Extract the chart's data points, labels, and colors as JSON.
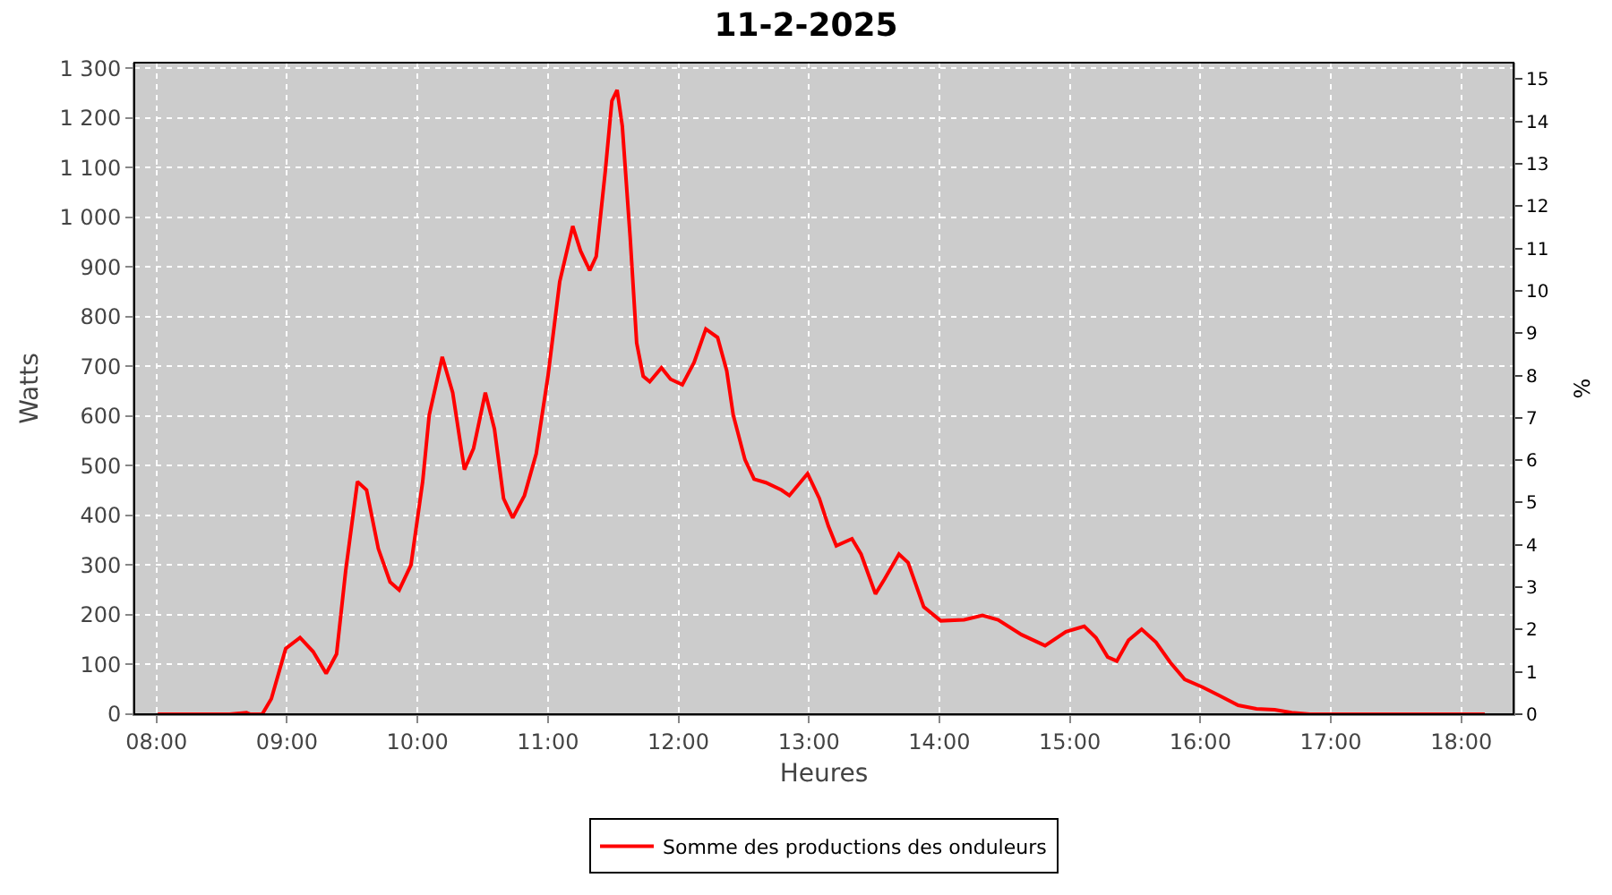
{
  "chart_data": {
    "type": "line",
    "title": "11-2-2025",
    "xlabel": "Heures",
    "ylabel": "Watts",
    "y2label": "%",
    "x": [
      8.01,
      8.56,
      8.69,
      8.72,
      8.81,
      8.88,
      8.99,
      9.1,
      9.2,
      9.3,
      9.38,
      9.45,
      9.54,
      9.61,
      9.7,
      9.79,
      9.86,
      9.95,
      10.04,
      10.09,
      10.19,
      10.27,
      10.36,
      10.43,
      10.52,
      10.59,
      10.66,
      10.73,
      10.82,
      10.91,
      11.0,
      11.09,
      11.19,
      11.25,
      11.32,
      11.37,
      11.44,
      11.49,
      11.53,
      11.57,
      11.63,
      11.68,
      11.73,
      11.78,
      11.87,
      11.94,
      12.03,
      12.12,
      12.21,
      12.3,
      12.37,
      12.42,
      12.51,
      12.58,
      12.67,
      12.79,
      12.85,
      12.99,
      13.08,
      13.15,
      13.21,
      13.33,
      13.4,
      13.51,
      13.58,
      13.69,
      13.76,
      13.88,
      14.01,
      14.19,
      14.33,
      14.45,
      14.63,
      14.81,
      14.97,
      15.11,
      15.2,
      15.29,
      15.36,
      15.45,
      15.55,
      15.66,
      15.77,
      15.88,
      16.02,
      16.15,
      16.29,
      16.43,
      16.57,
      16.7,
      16.84,
      18.18
    ],
    "series": [
      {
        "name": "Somme des productions des onduleurs",
        "color": "#ff0000",
        "values": [
          0,
          0,
          3,
          0,
          0,
          31,
          132,
          154,
          126,
          82,
          121,
          289,
          468,
          451,
          333,
          266,
          250,
          300,
          468,
          602,
          719,
          647,
          492,
          535,
          647,
          574,
          434,
          395,
          440,
          524,
          680,
          870,
          982,
          932,
          893,
          921,
          1094,
          1234,
          1256,
          1183,
          960,
          747,
          680,
          669,
          697,
          674,
          663,
          708,
          775,
          758,
          691,
          602,
          512,
          473,
          466,
          451,
          440,
          484,
          434,
          378,
          339,
          353,
          322,
          242,
          272,
          322,
          305,
          216,
          188,
          190,
          199,
          190,
          160,
          138,
          166,
          177,
          154,
          115,
          107,
          149,
          171,
          145,
          104,
          70,
          54,
          37,
          18,
          11,
          9,
          3,
          0,
          0
        ]
      }
    ],
    "xlim": [
      7.83,
      18.4
    ],
    "xticks": [
      {
        "value": 8,
        "label": "08:00"
      },
      {
        "value": 9,
        "label": "09:00"
      },
      {
        "value": 10,
        "label": "10:00"
      },
      {
        "value": 11,
        "label": "11:00"
      },
      {
        "value": 12,
        "label": "12:00"
      },
      {
        "value": 13,
        "label": "13:00"
      },
      {
        "value": 14,
        "label": "14:00"
      },
      {
        "value": 15,
        "label": "15:00"
      },
      {
        "value": 16,
        "label": "16:00"
      },
      {
        "value": 17,
        "label": "17:00"
      },
      {
        "value": 18,
        "label": "18:00"
      }
    ],
    "ylim": [
      0,
      1311
    ],
    "yticks": [
      0,
      100,
      200,
      300,
      400,
      500,
      600,
      700,
      800,
      900,
      {
        "value": 1000,
        "label": "1 000"
      },
      {
        "value": 1100,
        "label": "1 100"
      },
      {
        "value": 1200,
        "label": "1 200"
      },
      {
        "value": 1300,
        "label": "1 300"
      }
    ],
    "y2lim": [
      0,
      15.39
    ],
    "y2ticks": [
      0,
      1,
      2,
      3,
      4,
      5,
      6,
      7,
      8,
      9,
      10,
      11,
      12,
      13,
      14,
      15
    ],
    "grid": true,
    "legend": "bottom",
    "line_style": "solid",
    "marker": "none"
  }
}
